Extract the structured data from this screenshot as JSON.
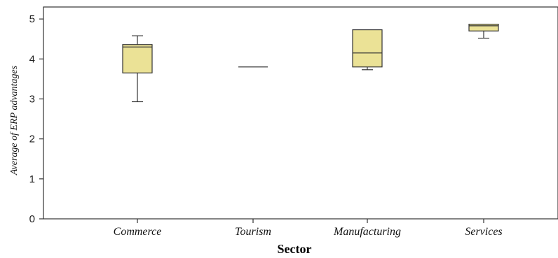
{
  "chart_data": {
    "type": "boxplot",
    "xlabel": "Sector",
    "ylabel": "Average of ERP advantages",
    "ylim": [
      0,
      5.3
    ],
    "yticks": [
      0,
      1,
      2,
      3,
      4,
      5
    ],
    "ytick_labels": [
      "0",
      "1",
      "2",
      "3",
      "4",
      "5"
    ],
    "categories": [
      "Commerce",
      "Tourism",
      "Manufacturing",
      "Services"
    ],
    "box_color": "#ebe296",
    "series": [
      {
        "category": "Commerce",
        "min": 2.93,
        "q1": 3.65,
        "median": 4.3,
        "q3": 4.36,
        "max": 4.58
      },
      {
        "category": "Tourism",
        "min": 3.8,
        "q1": 3.8,
        "median": 3.8,
        "q3": 3.8,
        "max": 3.8
      },
      {
        "category": "Manufacturing",
        "min": 3.73,
        "q1": 3.8,
        "median": 4.15,
        "q3": 4.73,
        "max": 4.73
      },
      {
        "category": "Services",
        "min": 4.52,
        "q1": 4.7,
        "median": 4.83,
        "q3": 4.87,
        "max": 4.87
      }
    ]
  }
}
